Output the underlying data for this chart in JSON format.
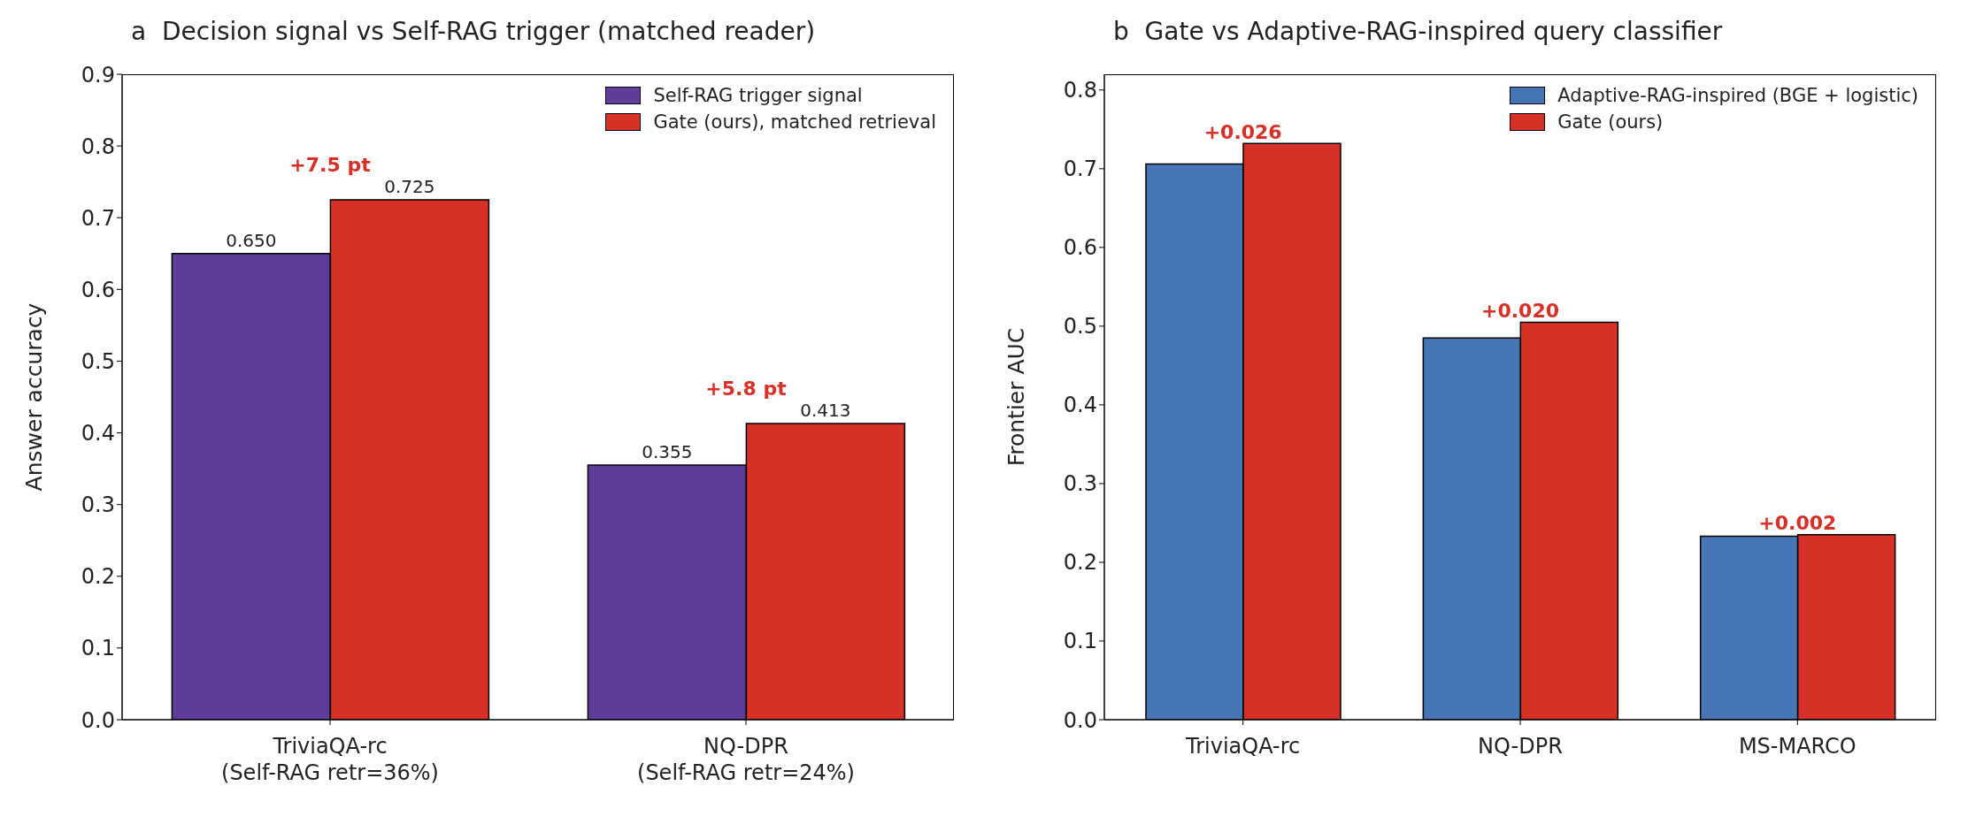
{
  "chart_data": [
    {
      "type": "bar",
      "title": "a  Decision signal vs Self-RAG trigger (matched reader)",
      "ylabel": "Answer accuracy",
      "categories": [
        "TriviaQA-rc\n(Self-RAG retr=36%)",
        "NQ-DPR\n(Self-RAG retr=24%)"
      ],
      "series": [
        {
          "name": "Self-RAG trigger signal",
          "color": "#5e3c99",
          "values": [
            0.65,
            0.355
          ],
          "value_labels": [
            "0.650",
            "0.355"
          ]
        },
        {
          "name": "Gate (ours), matched retrieval",
          "color": "#d73027",
          "values": [
            0.725,
            0.413
          ],
          "value_labels": [
            "0.725",
            "0.413"
          ]
        }
      ],
      "annotations": [
        "+7.5 pt",
        "+5.8 pt"
      ],
      "ylim": [
        0,
        0.9
      ],
      "yticks": [
        {
          "value": 0,
          "label": "0.0"
        },
        0.1,
        0.2,
        0.3,
        0.4,
        0.5,
        0.6,
        0.7,
        0.8,
        0.9
      ],
      "legend": "top right"
    },
    {
      "type": "bar",
      "title": "b  Gate vs Adaptive-RAG-inspired query classifier",
      "ylabel": "Frontier AUC",
      "categories": [
        "TriviaQA-rc",
        "NQ-DPR",
        "MS-MARCO"
      ],
      "series": [
        {
          "name": "Adaptive-RAG-inspired (BGE + logistic)",
          "color": "#4575b4",
          "values": [
            0.706,
            0.485,
            0.233
          ]
        },
        {
          "name": "Gate (ours)",
          "color": "#d73027",
          "values": [
            0.732,
            0.505,
            0.235
          ]
        }
      ],
      "annotations": [
        "+0.026",
        "+0.020",
        "+0.002"
      ],
      "ylim": [
        0,
        0.82
      ],
      "yticks": [
        {
          "value": 0,
          "label": "0.0"
        },
        0.1,
        0.2,
        0.3,
        0.4,
        0.5,
        0.6,
        0.7,
        0.8
      ],
      "legend": "top right"
    }
  ]
}
